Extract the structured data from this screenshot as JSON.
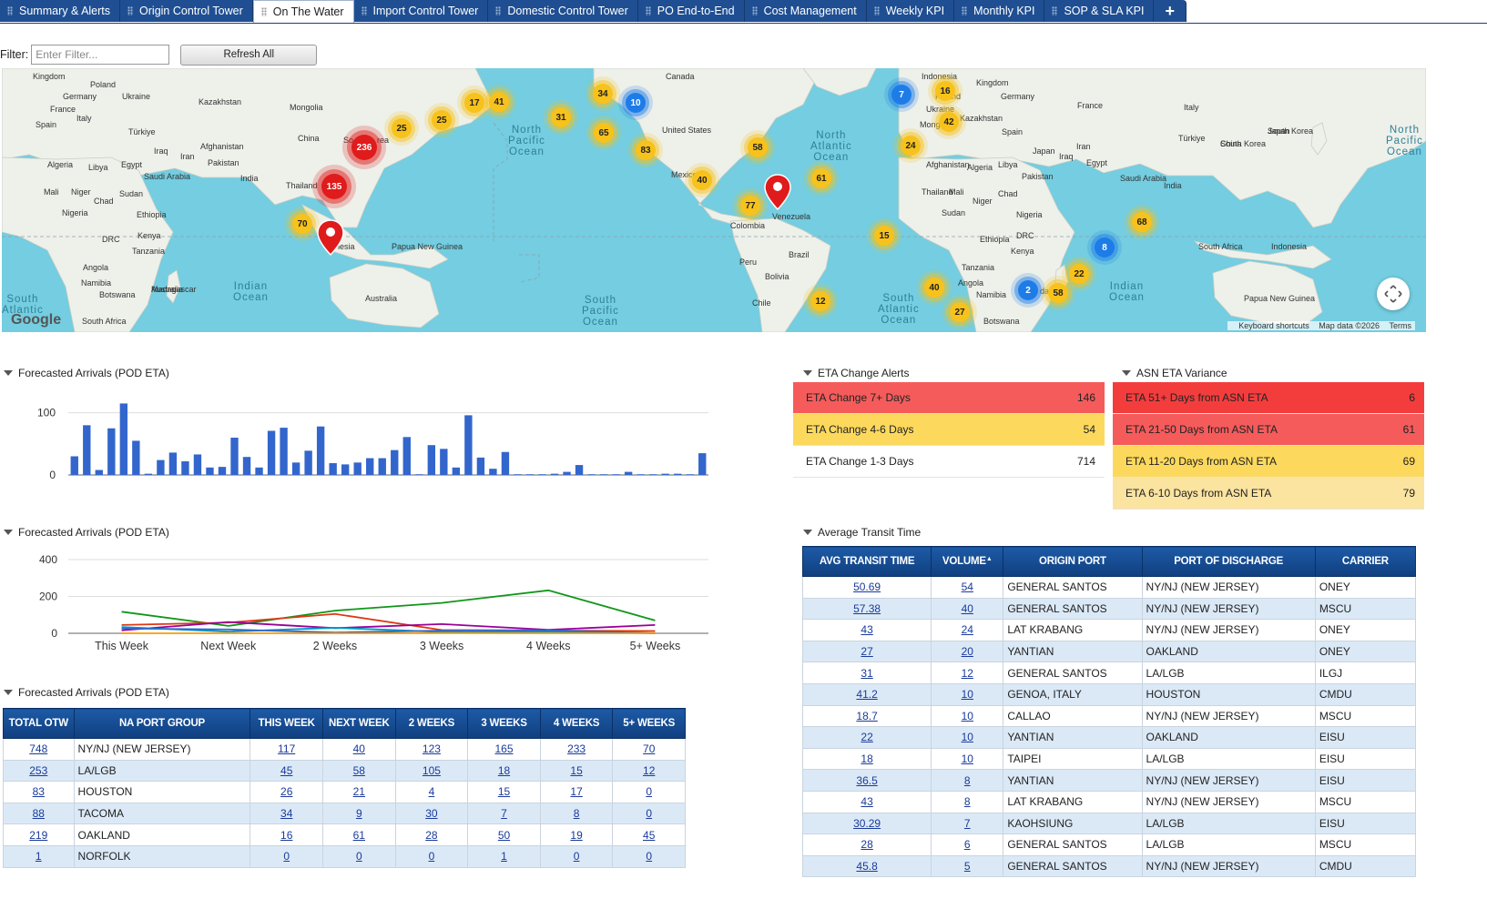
{
  "tabs": [
    {
      "label": "Summary & Alerts",
      "active": false
    },
    {
      "label": "Origin Control Tower",
      "active": false
    },
    {
      "label": "On The Water",
      "active": true
    },
    {
      "label": "Import Control Tower",
      "active": false
    },
    {
      "label": "Domestic Control Tower",
      "active": false
    },
    {
      "label": "PO End-to-End",
      "active": false
    },
    {
      "label": "Cost Management",
      "active": false
    },
    {
      "label": "Weekly KPI",
      "active": false
    },
    {
      "label": "Monthly KPI",
      "active": false
    },
    {
      "label": "SOP & SLA KPI",
      "active": false
    }
  ],
  "add_tab_label": "+",
  "filter": {
    "label": "Filter:",
    "placeholder": "Enter Filter...",
    "value": "",
    "refresh_label": "Refresh All"
  },
  "map": {
    "logo": "Google",
    "footer": {
      "shortcuts": "Keyboard shortcuts",
      "data": "Map data ©2026",
      "terms": "Terms"
    },
    "colors": {
      "water": "#74cde0",
      "land": "#eef0ea",
      "cluster_yellow": "#f7c21b",
      "cluster_blue": "#1e7ce8",
      "cluster_red": "#e01b1b"
    },
    "clusters": [
      "236",
      "135",
      "70",
      "25",
      "25",
      "17",
      "41",
      "34",
      "10",
      "31",
      "65",
      "83",
      "58",
      "40",
      "77",
      "61",
      "15",
      "7",
      "16",
      "42",
      "24",
      "68",
      "8",
      "22",
      "2",
      "58",
      "40",
      "27",
      "12"
    ],
    "oceans": [
      "North Pacific Ocean",
      "North Atlantic Ocean",
      "Indian Ocean",
      "South Pacific Ocean",
      "South Atlantic Ocean",
      "Indian Ocean",
      "South Atlantic",
      "North Pacific Ocean"
    ],
    "places": [
      "Kingdom",
      "Poland",
      "Germany",
      "Ukraine",
      "France",
      "Kazakhstan",
      "Italy",
      "Mongolia",
      "Spain",
      "Türkiye",
      "China",
      "Iraq",
      "Iran",
      "Afghanistan",
      "Algeria",
      "Libya",
      "Egypt",
      "Pakistan",
      "India",
      "Saudi Arabia",
      "Thailand",
      "Mali",
      "Niger",
      "Chad",
      "Sudan",
      "Nigeria",
      "Ethiopia",
      "DRC",
      "Kenya",
      "Tanzania",
      "Angola",
      "Namibia",
      "Botswana",
      "Madagascar",
      "South Africa",
      "Papua New Guinea",
      "Australia",
      "Canada",
      "United States",
      "Mexico",
      "Colombia",
      "Venezuela",
      "Peru",
      "Brazil",
      "Bolivia",
      "Chile",
      "South Korea",
      "Japan",
      "Indonesia",
      "Kingdom",
      "Poland",
      "Germany",
      "Ukraine",
      "France",
      "Kazakhstan",
      "Italy",
      "Mongolia",
      "Spain",
      "Türkiye",
      "China",
      "South Korea",
      "Japan",
      "Iraq",
      "Iran",
      "Afghanistan",
      "Algeria",
      "Libya",
      "Egypt",
      "Pakistan",
      "Saudi Arabia",
      "India",
      "Thailand",
      "Mali",
      "Niger",
      "Chad",
      "Sudan",
      "Nigeria",
      "Ethiopia",
      "DRC",
      "Kenya",
      "Tanzania",
      "Angola",
      "Namibia",
      "Botswana",
      "South Africa",
      "Indonesia",
      "Papua New Guinea",
      "Australia",
      "Madagascar"
    ],
    "place_fragments": [
      "So",
      "rea",
      "nesia",
      "da"
    ]
  },
  "sections": {
    "bar_title": "Forecasted Arrivals (POD ETA)",
    "line_title": "Forecasted Arrivals (POD ETA)",
    "table_title": "Forecasted Arrivals (POD ETA)",
    "eta_alerts_title": "ETA Change Alerts",
    "asn_title": "ASN ETA Variance",
    "transit_title": "Average Transit Time"
  },
  "bar_chart": {
    "type": "bar",
    "color": "#3366cc",
    "ylim": [
      0,
      120
    ],
    "yticks": [
      0,
      100
    ],
    "values": [
      30,
      80,
      8,
      75,
      115,
      55,
      2,
      24,
      36,
      22,
      33,
      12,
      13,
      60,
      29,
      12,
      71,
      76,
      20,
      39,
      78,
      19,
      17,
      20,
      27,
      27,
      40,
      61,
      1,
      48,
      42,
      12,
      96,
      28,
      10,
      37,
      0,
      0,
      0,
      2,
      5,
      16,
      0,
      0,
      0,
      5,
      0,
      0,
      2,
      2,
      0,
      35
    ]
  },
  "line_chart": {
    "type": "line",
    "categories": [
      "This Week",
      "Next Week",
      "2 Weeks",
      "3 Weeks",
      "4 Weeks",
      "5+ Weeks"
    ],
    "ylim": [
      0,
      400
    ],
    "yticks": [
      0,
      200,
      400
    ],
    "series": [
      {
        "color": "#109618",
        "values": [
          117,
          40,
          123,
          165,
          233,
          70
        ]
      },
      {
        "color": "#dc3912",
        "values": [
          45,
          58,
          105,
          18,
          15,
          12
        ]
      },
      {
        "color": "#990099",
        "values": [
          16,
          61,
          28,
          50,
          19,
          45
        ]
      },
      {
        "color": "#0099c6",
        "values": [
          34,
          9,
          30,
          7,
          8,
          0
        ]
      },
      {
        "color": "#3366cc",
        "values": [
          26,
          21,
          4,
          15,
          17,
          0
        ]
      },
      {
        "color": "#ff9900",
        "values": [
          0,
          0,
          0,
          1,
          0,
          0
        ]
      }
    ]
  },
  "eta_alerts": [
    {
      "label": "ETA Change 7+ Days",
      "value": "146",
      "color": "#f55b5b"
    },
    {
      "label": "ETA Change 4-6 Days",
      "value": "54",
      "color": "#fcd95c"
    },
    {
      "label": "ETA Change 1-3 Days",
      "value": "714",
      "color": "#ffffff"
    }
  ],
  "asn_variance": [
    {
      "label": "ETA 51+ Days from ASN ETA",
      "value": "6",
      "color": "#f33d3d"
    },
    {
      "label": "ETA 21-50 Days from ASN ETA",
      "value": "61",
      "color": "#f55b5b"
    },
    {
      "label": "ETA 11-20 Days from ASN ETA",
      "value": "69",
      "color": "#fcd95c"
    },
    {
      "label": "ETA 6-10 Days from ASN ETA",
      "value": "79",
      "color": "#fbe3a0"
    }
  ],
  "port_table": {
    "headers": [
      "TOTAL OTW",
      "NA PORT GROUP",
      "THIS WEEK",
      "NEXT WEEK",
      "2 WEEKS",
      "3 WEEKS",
      "4 WEEKS",
      "5+ WEEKS"
    ],
    "rows": [
      [
        "748",
        "NY/NJ (NEW JERSEY)",
        "117",
        "40",
        "123",
        "165",
        "233",
        "70"
      ],
      [
        "253",
        "LA/LGB",
        "45",
        "58",
        "105",
        "18",
        "15",
        "12"
      ],
      [
        "83",
        "HOUSTON",
        "26",
        "21",
        "4",
        "15",
        "17",
        "0"
      ],
      [
        "88",
        "TACOMA",
        "34",
        "9",
        "30",
        "7",
        "8",
        "0"
      ],
      [
        "219",
        "OAKLAND",
        "16",
        "61",
        "28",
        "50",
        "19",
        "45"
      ],
      [
        "1",
        "NORFOLK",
        "0",
        "0",
        "0",
        "1",
        "0",
        "0"
      ]
    ]
  },
  "transit_table": {
    "headers": [
      "AVG TRANSIT TIME",
      "VOLUME",
      "ORIGIN PORT",
      "PORT OF DISCHARGE",
      "CARRIER"
    ],
    "sort_indicator": "▲",
    "rows": [
      [
        "50.69",
        "54",
        "GENERAL SANTOS",
        "NY/NJ (NEW JERSEY)",
        "ONEY"
      ],
      [
        "57.38",
        "40",
        "GENERAL SANTOS",
        "NY/NJ (NEW JERSEY)",
        "MSCU"
      ],
      [
        "43",
        "24",
        "LAT KRABANG",
        "NY/NJ (NEW JERSEY)",
        "ONEY"
      ],
      [
        "27",
        "20",
        "YANTIAN",
        "OAKLAND",
        "ONEY"
      ],
      [
        "31",
        "12",
        "GENERAL SANTOS",
        "LA/LGB",
        "ILGJ"
      ],
      [
        "41.2",
        "10",
        "GENOA, ITALY",
        "HOUSTON",
        "CMDU"
      ],
      [
        "18.7",
        "10",
        "CALLAO",
        "NY/NJ (NEW JERSEY)",
        "MSCU"
      ],
      [
        "22",
        "10",
        "YANTIAN",
        "OAKLAND",
        "EISU"
      ],
      [
        "18",
        "10",
        "TAIPEI",
        "LA/LGB",
        "EISU"
      ],
      [
        "36.5",
        "8",
        "YANTIAN",
        "NY/NJ (NEW JERSEY)",
        "EISU"
      ],
      [
        "43",
        "8",
        "LAT KRABANG",
        "NY/NJ (NEW JERSEY)",
        "MSCU"
      ],
      [
        "30.29",
        "7",
        "KAOHSIUNG",
        "LA/LGB",
        "EISU"
      ],
      [
        "28",
        "6",
        "GENERAL SANTOS",
        "LA/LGB",
        "MSCU"
      ],
      [
        "45.8",
        "5",
        "GENERAL SANTOS",
        "NY/NJ (NEW JERSEY)",
        "CMDU"
      ]
    ]
  }
}
